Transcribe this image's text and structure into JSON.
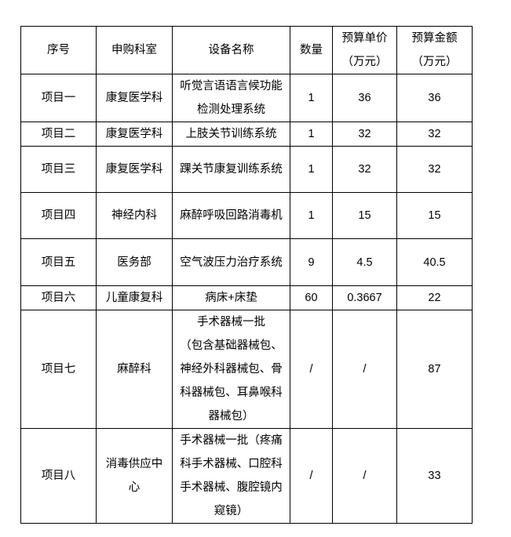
{
  "table": {
    "headers": [
      "序号",
      "申购科室",
      "设备名称",
      "数量",
      "预算单价\n（万元）",
      "预算金额\n（万元）"
    ],
    "rows": [
      [
        "项目一",
        "康复医学科",
        "听觉言语语言候功能检测处理系统",
        "1",
        "36",
        "36"
      ],
      [
        "项目二",
        "康复医学科",
        "上肢关节训练系统",
        "1",
        "32",
        "32"
      ],
      [
        "项目三",
        "康复医学科",
        "踝关节康复训练系统",
        "1",
        "32",
        "32"
      ],
      [
        "项目四",
        "神经内科",
        "麻醉呼吸回路消毒机",
        "1",
        "15",
        "15"
      ],
      [
        "项目五",
        "医务部",
        "空气波压力治疗系统",
        "9",
        "4.5",
        "40.5"
      ],
      [
        "项目六",
        "儿童康复科",
        "病床+床垫",
        "60",
        "0.3667",
        "22"
      ],
      [
        "项目七",
        "麻醉科",
        "手术器械一批\n（包含基础器械包、神经外科器械包、骨科器械包、耳鼻喉科器械包）",
        "/",
        "/",
        "87"
      ],
      [
        "项目八",
        "消毒供应中心",
        "手术器械一批（疼痛科手术器械、口腔科手术器械、腹腔镜内窥镜）",
        "/",
        "/",
        "33"
      ]
    ]
  }
}
